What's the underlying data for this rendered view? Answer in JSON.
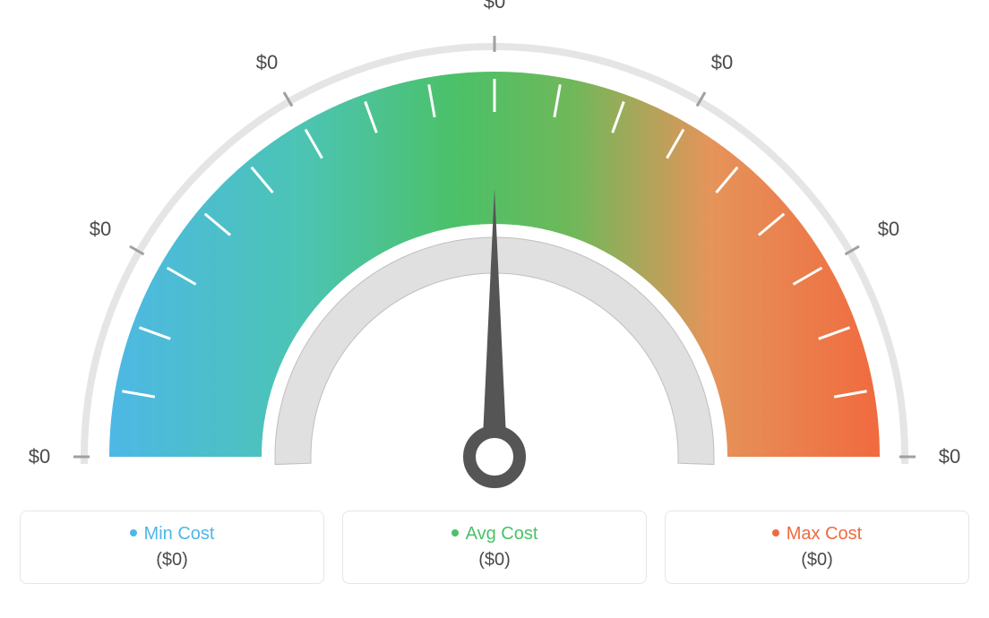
{
  "gauge": {
    "type": "gauge",
    "tick_labels": [
      "$0",
      "$0",
      "$0",
      "$0",
      "$0",
      "$0",
      "$0"
    ],
    "tick_label_color": "#4a4a4a",
    "tick_label_fontsize": 22,
    "outer_ring_color": "#e5e5e5",
    "outer_ring_width": 8,
    "inner_ring_color": "#e0e0e0",
    "inner_ring_width": 40,
    "inner_ring_border_color": "#bfbfbf",
    "gradient_colors": {
      "start": "#4db8e5",
      "mid1": "#4cc4b4",
      "mid2": "#4bc168",
      "mid3": "#6fb85a",
      "mid4": "#e5945a",
      "end": "#f06a3f"
    },
    "needle_color": "#555555",
    "needle_angle_deg": 90,
    "tick_mark_color_major": "#a0a0a0",
    "tick_mark_color_minor": "#ffffff",
    "background_color": "#ffffff",
    "arc_outer_radius": 430,
    "arc_inner_radius": 260,
    "minor_tick_count": 18,
    "major_tick_count": 7
  },
  "legend": {
    "items": [
      {
        "label": "Min Cost",
        "color": "#4db8e5",
        "value": "($0)"
      },
      {
        "label": "Avg Cost",
        "color": "#4bc168",
        "value": "($0)"
      },
      {
        "label": "Max Cost",
        "color": "#f06a3f",
        "value": "($0)"
      }
    ],
    "border_color": "#e5e5e5",
    "border_radius": 8,
    "label_fontsize": 20,
    "value_fontsize": 20,
    "value_color": "#4a4a4a"
  }
}
